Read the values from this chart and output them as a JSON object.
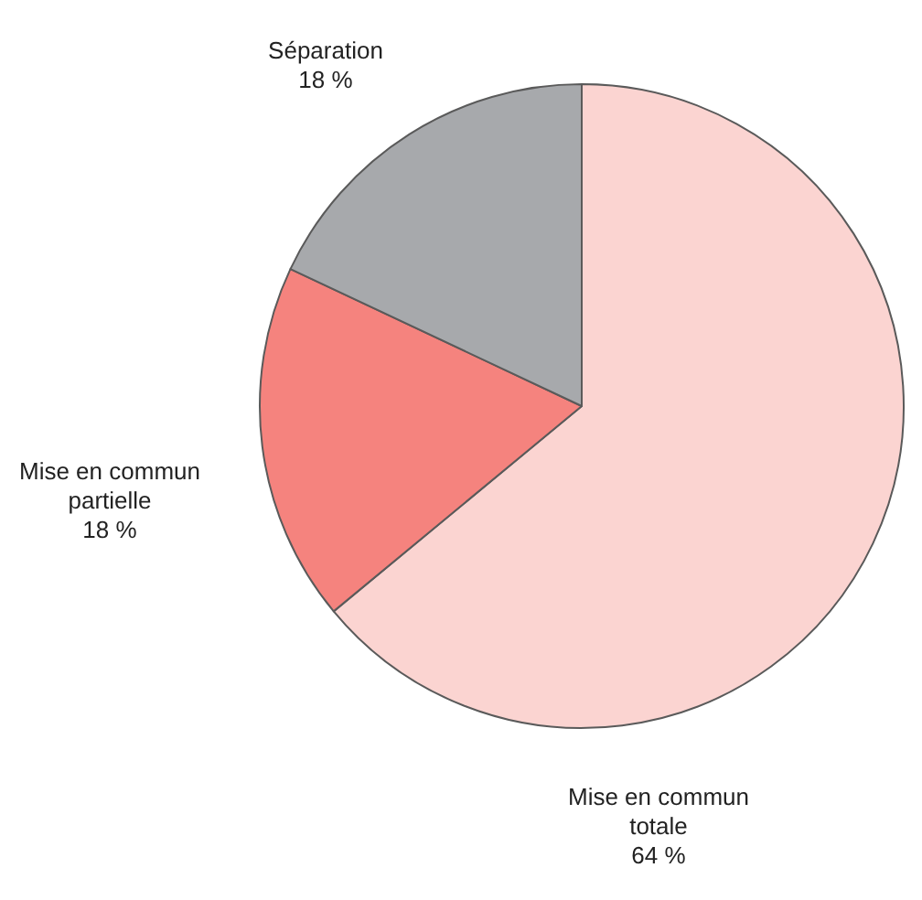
{
  "chart_data": {
    "type": "pie",
    "categories": [
      "Mise en commun totale",
      "Mise en commun partielle",
      "Séparation"
    ],
    "values": [
      64,
      18,
      18
    ],
    "colors": [
      "#fbd4d1",
      "#f5837e",
      "#a7a9ac"
    ],
    "value_labels": [
      "64 %",
      "18 %",
      "18 %"
    ],
    "legend": false
  }
}
